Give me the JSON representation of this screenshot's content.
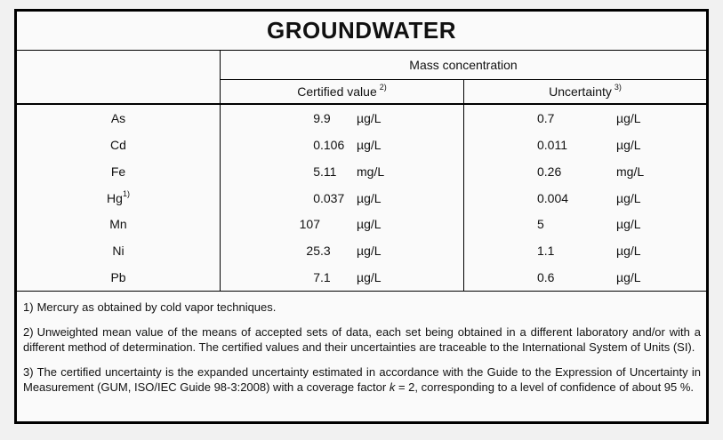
{
  "title": "GROUNDWATER",
  "table": {
    "group_header": "Mass concentration",
    "columns": [
      {
        "label": "Certified value",
        "sup": "2)"
      },
      {
        "label": "Uncertainty",
        "sup": "3)"
      }
    ],
    "rows": [
      {
        "element": "As",
        "element_sup": "",
        "certified": "9.9",
        "certified_unit": "µg/L",
        "uncertainty": "0.7",
        "uncertainty_unit": "µg/L"
      },
      {
        "element": "Cd",
        "element_sup": "",
        "certified": "0.106",
        "certified_unit": "µg/L",
        "uncertainty": "0.011",
        "uncertainty_unit": "µg/L"
      },
      {
        "element": "Fe",
        "element_sup": "",
        "certified": "5.11",
        "certified_unit": "mg/L",
        "uncertainty": "0.26",
        "uncertainty_unit": "mg/L"
      },
      {
        "element": "Hg",
        "element_sup": "1)",
        "certified": "0.037",
        "certified_unit": "µg/L",
        "uncertainty": "0.004",
        "uncertainty_unit": "µg/L"
      },
      {
        "element": "Mn",
        "element_sup": "",
        "certified": "107",
        "certified_unit": "µg/L",
        "uncertainty": "5",
        "uncertainty_unit": "µg/L"
      },
      {
        "element": "Ni",
        "element_sup": "",
        "certified": "25.3",
        "certified_unit": "µg/L",
        "uncertainty": "1.1",
        "uncertainty_unit": "µg/L"
      },
      {
        "element": "Pb",
        "element_sup": "",
        "certified": "7.1",
        "certified_unit": "µg/L",
        "uncertainty": "0.6",
        "uncertainty_unit": "µg/L"
      }
    ]
  },
  "footnotes": [
    {
      "marker": "1)",
      "parts": [
        {
          "text": "Mercury as obtained by cold vapor techniques."
        }
      ]
    },
    {
      "marker": "2)",
      "parts": [
        {
          "text": "Unweighted mean value of the means of accepted sets of data, each set being obtained in a different laboratory and/or with a different method of determination. The certified values and their uncertainties are traceable to the International System of Units (SI)."
        }
      ]
    },
    {
      "marker": "3)",
      "parts": [
        {
          "text": "The certified uncertainty is the expanded uncertainty estimated in accordance with the Guide to the Expression of Uncertainty in Measurement (GUM, ISO/IEC Guide 98-3:2008) with a coverage factor "
        },
        {
          "text": "k",
          "italic": true
        },
        {
          "text": " = 2, corresponding to a level of confidence of about 95 %."
        }
      ]
    }
  ],
  "colors": {
    "page_background": "#f1f1f1",
    "table_background": "#fafafa",
    "border": "#000000",
    "text": "#111111"
  }
}
